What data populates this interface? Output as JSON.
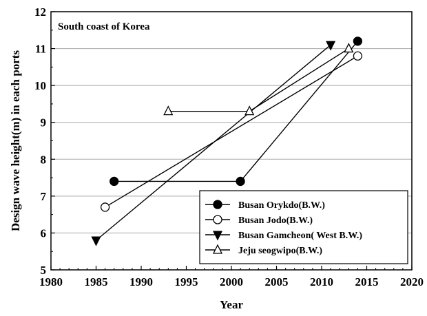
{
  "chart_data": {
    "type": "line",
    "title": "",
    "annotation": "South coast of Korea",
    "xlabel": "Year",
    "ylabel": "Design wave height(m) in each ports",
    "xlim": [
      1980,
      2020
    ],
    "ylim": [
      5,
      12
    ],
    "x_ticks": [
      1980,
      1985,
      1990,
      1995,
      2000,
      2005,
      2010,
      2015,
      2020
    ],
    "y_ticks": [
      5,
      6,
      7,
      8,
      9,
      10,
      11,
      12
    ],
    "grid": "horizontal",
    "legend_position": "bottom-right",
    "series": [
      {
        "name": "Busan Orykdo(B.W.)",
        "marker": "filled-circle",
        "points": [
          [
            1987,
            7.4
          ],
          [
            2001,
            7.4
          ],
          [
            2014,
            11.2
          ]
        ]
      },
      {
        "name": "Busan Jodo(B.W.)",
        "marker": "open-circle",
        "points": [
          [
            1986,
            6.7
          ],
          [
            2014,
            10.8
          ]
        ]
      },
      {
        "name": "Busan Gamcheon( West B.W.)",
        "marker": "filled-triangle-down",
        "points": [
          [
            1985,
            5.8
          ],
          [
            2011,
            11.1
          ]
        ]
      },
      {
        "name": "Jeju seogwipo(B.W.)",
        "marker": "open-triangle-up",
        "points": [
          [
            1993,
            9.3
          ],
          [
            2002,
            9.3
          ],
          [
            2013,
            11.0
          ]
        ]
      }
    ]
  }
}
